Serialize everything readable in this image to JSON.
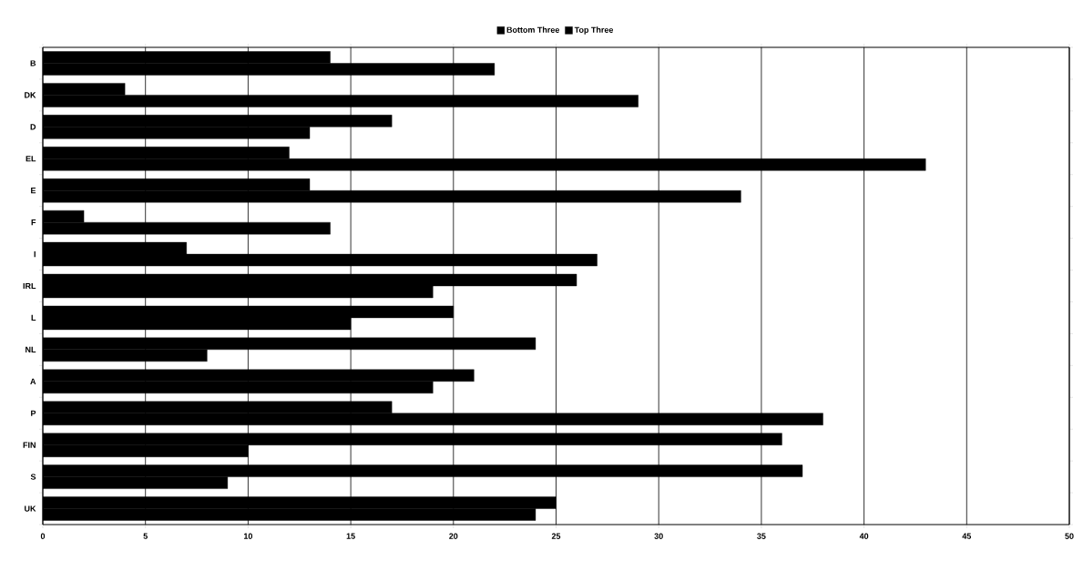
{
  "chart_data": {
    "type": "bar",
    "orientation": "horizontal",
    "categories": [
      "B",
      "DK",
      "D",
      "EL",
      "E",
      "F",
      "I",
      "IRL",
      "L",
      "NL",
      "A",
      "P",
      "FIN",
      "S",
      "UK"
    ],
    "series": [
      {
        "name": "Bottom Three",
        "color": "#000000",
        "values": [
          14,
          4,
          17,
          12,
          13,
          2,
          7,
          26,
          20,
          24,
          21,
          17,
          36,
          37,
          25
        ]
      },
      {
        "name": "Top Three",
        "color": "#000000",
        "values": [
          22,
          29,
          13,
          43,
          34,
          14,
          27,
          19,
          15,
          8,
          19,
          38,
          10,
          9,
          24
        ]
      }
    ],
    "xlim": [
      0,
      50
    ],
    "xticks": [
      0,
      5,
      10,
      15,
      20,
      25,
      30,
      35,
      40,
      45,
      50
    ],
    "grid": "x",
    "legend": "top"
  }
}
